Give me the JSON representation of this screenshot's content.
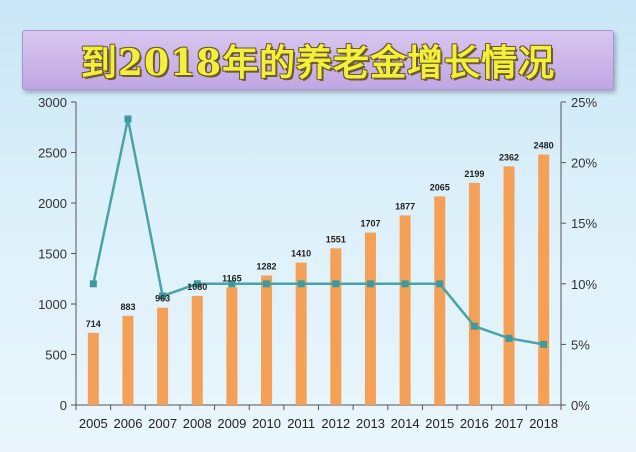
{
  "banner": {
    "title": "到2018年的养老金增长情况"
  },
  "colors": {
    "bar": "#f4a056",
    "line": "#4aa3a6",
    "marker": "#3f9aa0",
    "axis": "#555555"
  },
  "chart_data": {
    "type": "bar",
    "title": "到2018年的养老金增长情况",
    "categories": [
      "2005",
      "2006",
      "2007",
      "2008",
      "2009",
      "2010",
      "2011",
      "2012",
      "2013",
      "2014",
      "2015",
      "2016",
      "2017",
      "2018"
    ],
    "series": [
      {
        "values": [
          714,
          883,
          963,
          1080,
          1165,
          1282,
          1410,
          1551,
          1707,
          1877,
          2065,
          2199,
          2362,
          2480
        ],
        "type": "bar",
        "axis": "left"
      },
      {
        "values": [
          10,
          23.6,
          9,
          10,
          10,
          10,
          10,
          10,
          10,
          10,
          10,
          6.5,
          5.5,
          5
        ],
        "type": "line",
        "axis": "right",
        "unit": "%"
      }
    ],
    "data_labels": [
      "714",
      "883",
      "963",
      "1080",
      "1165",
      "1282",
      "1410",
      "1551",
      "1707",
      "1877",
      "2065",
      "2199",
      "2362",
      "2480"
    ],
    "ylim": [
      0,
      3000
    ],
    "y_ticks": [
      0,
      500,
      1000,
      1500,
      2000,
      2500,
      3000
    ],
    "y_tick_labels": [
      "0",
      "500",
      "1000",
      "1500",
      "2000",
      "2500",
      "3000"
    ],
    "y2lim": [
      0,
      25
    ],
    "y2_ticks": [
      0,
      5,
      10,
      15,
      20,
      25
    ],
    "y2_tick_labels": [
      "0%",
      "5%",
      "10%",
      "15%",
      "20%",
      "25%"
    ],
    "grid": false,
    "legend": "none"
  }
}
